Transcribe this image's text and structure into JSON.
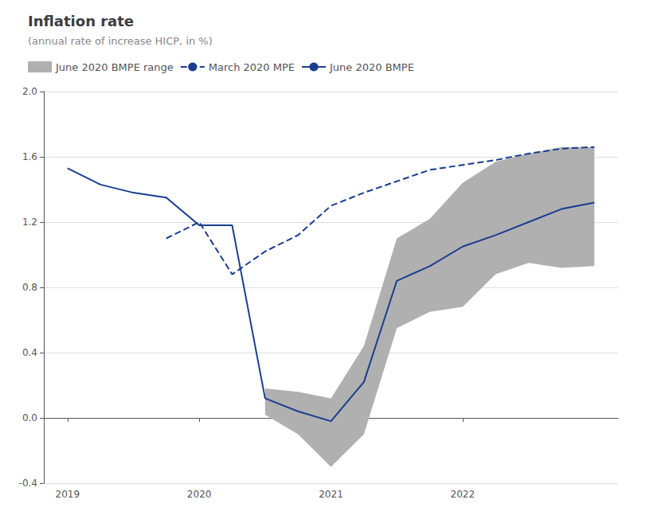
{
  "chart_data": {
    "type": "line",
    "title": "Inflation rate",
    "subtitle": "(annual rate of increase HICP, in %)",
    "xlim": [
      2018.82,
      2023.18
    ],
    "xticks": [
      2019,
      2020,
      2021,
      2022
    ],
    "ylim": [
      -0.4,
      2.0
    ],
    "yticks": [
      -0.4,
      {
        "value": 0.0,
        "label": "0.0"
      },
      0.4,
      0.8,
      1.2,
      1.6,
      {
        "value": 2.0,
        "label": "2.0"
      }
    ],
    "grid": true,
    "legend": "upper left",
    "series": [
      {
        "name": "June 2020 BMPE range",
        "type": "range",
        "color": "#b0b0b0",
        "x": [
          2020.5,
          2020.75,
          2021.0,
          2021.25,
          2021.5,
          2021.75,
          2022.0,
          2022.25,
          2022.5,
          2022.75,
          2023.0
        ],
        "upper": [
          0.18,
          0.16,
          0.12,
          0.44,
          1.1,
          1.22,
          1.44,
          1.57,
          1.62,
          1.66,
          1.66
        ],
        "lower": [
          0.02,
          -0.1,
          -0.3,
          -0.1,
          0.55,
          0.65,
          0.68,
          0.88,
          0.95,
          0.92,
          0.93
        ]
      },
      {
        "name": "March 2020 MPE",
        "type": "line",
        "line_style": "dashed",
        "color": "#1a3d8f",
        "x": [
          2019.75,
          2020.0,
          2020.25,
          2020.5,
          2020.75,
          2021.0,
          2021.25,
          2021.5,
          2021.75,
          2022.0,
          2022.25,
          2022.5,
          2022.75,
          2023.0
        ],
        "values": [
          1.1,
          1.2,
          0.88,
          1.02,
          1.12,
          1.3,
          1.38,
          1.45,
          1.52,
          1.55,
          1.58,
          1.62,
          1.65,
          1.66
        ]
      },
      {
        "name": "June 2020 BMPE",
        "type": "line",
        "line_style": "solid",
        "color": "#1a3d8f",
        "x": [
          2019.0,
          2019.25,
          2019.5,
          2019.75,
          2020.0,
          2020.25,
          2020.5,
          2020.75,
          2021.0,
          2021.25,
          2021.5,
          2021.75,
          2022.0,
          2022.25,
          2022.5,
          2022.75,
          2023.0
        ],
        "values": [
          1.53,
          1.43,
          1.38,
          1.35,
          1.18,
          1.18,
          0.12,
          0.04,
          -0.02,
          0.22,
          0.84,
          0.93,
          1.05,
          1.12,
          1.2,
          1.28,
          1.32
        ]
      }
    ]
  }
}
